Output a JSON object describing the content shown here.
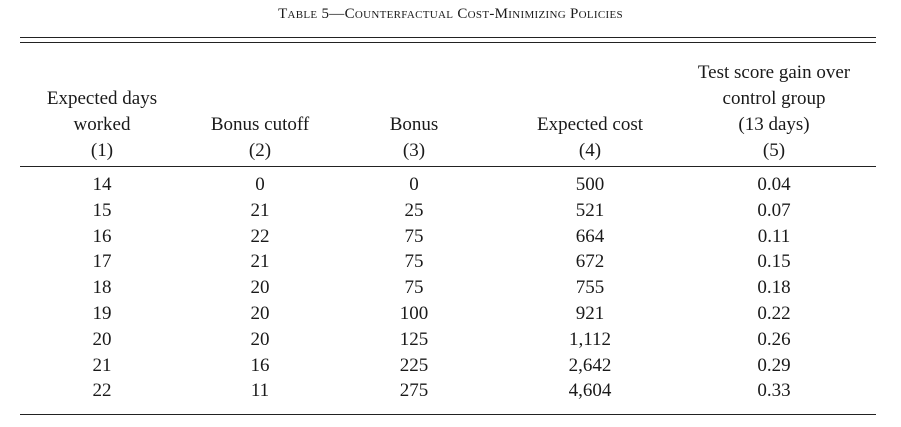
{
  "title": "Table 5—Counterfactual Cost-Minimizing Policies",
  "columns": [
    {
      "label_lines": [
        "Expected days",
        "worked"
      ],
      "number": "(1)"
    },
    {
      "label_lines": [
        "Bonus cutoff"
      ],
      "number": "(2)"
    },
    {
      "label_lines": [
        "Bonus"
      ],
      "number": "(3)"
    },
    {
      "label_lines": [
        "Expected cost"
      ],
      "number": "(4)"
    },
    {
      "label_lines": [
        "Test score gain over",
        "control group",
        "(13 days)"
      ],
      "number": "(5)"
    }
  ],
  "rows": [
    [
      "14",
      "0",
      "0",
      "500",
      "0.04"
    ],
    [
      "15",
      "21",
      "25",
      "521",
      "0.07"
    ],
    [
      "16",
      "22",
      "75",
      "664",
      "0.11"
    ],
    [
      "17",
      "21",
      "75",
      "672",
      "0.15"
    ],
    [
      "18",
      "20",
      "75",
      "755",
      "0.18"
    ],
    [
      "19",
      "20",
      "100",
      "921",
      "0.22"
    ],
    [
      "20",
      "20",
      "125",
      "1,112",
      "0.26"
    ],
    [
      "21",
      "16",
      "225",
      "2,642",
      "0.29"
    ],
    [
      "22",
      "11",
      "275",
      "4,604",
      "0.33"
    ]
  ]
}
